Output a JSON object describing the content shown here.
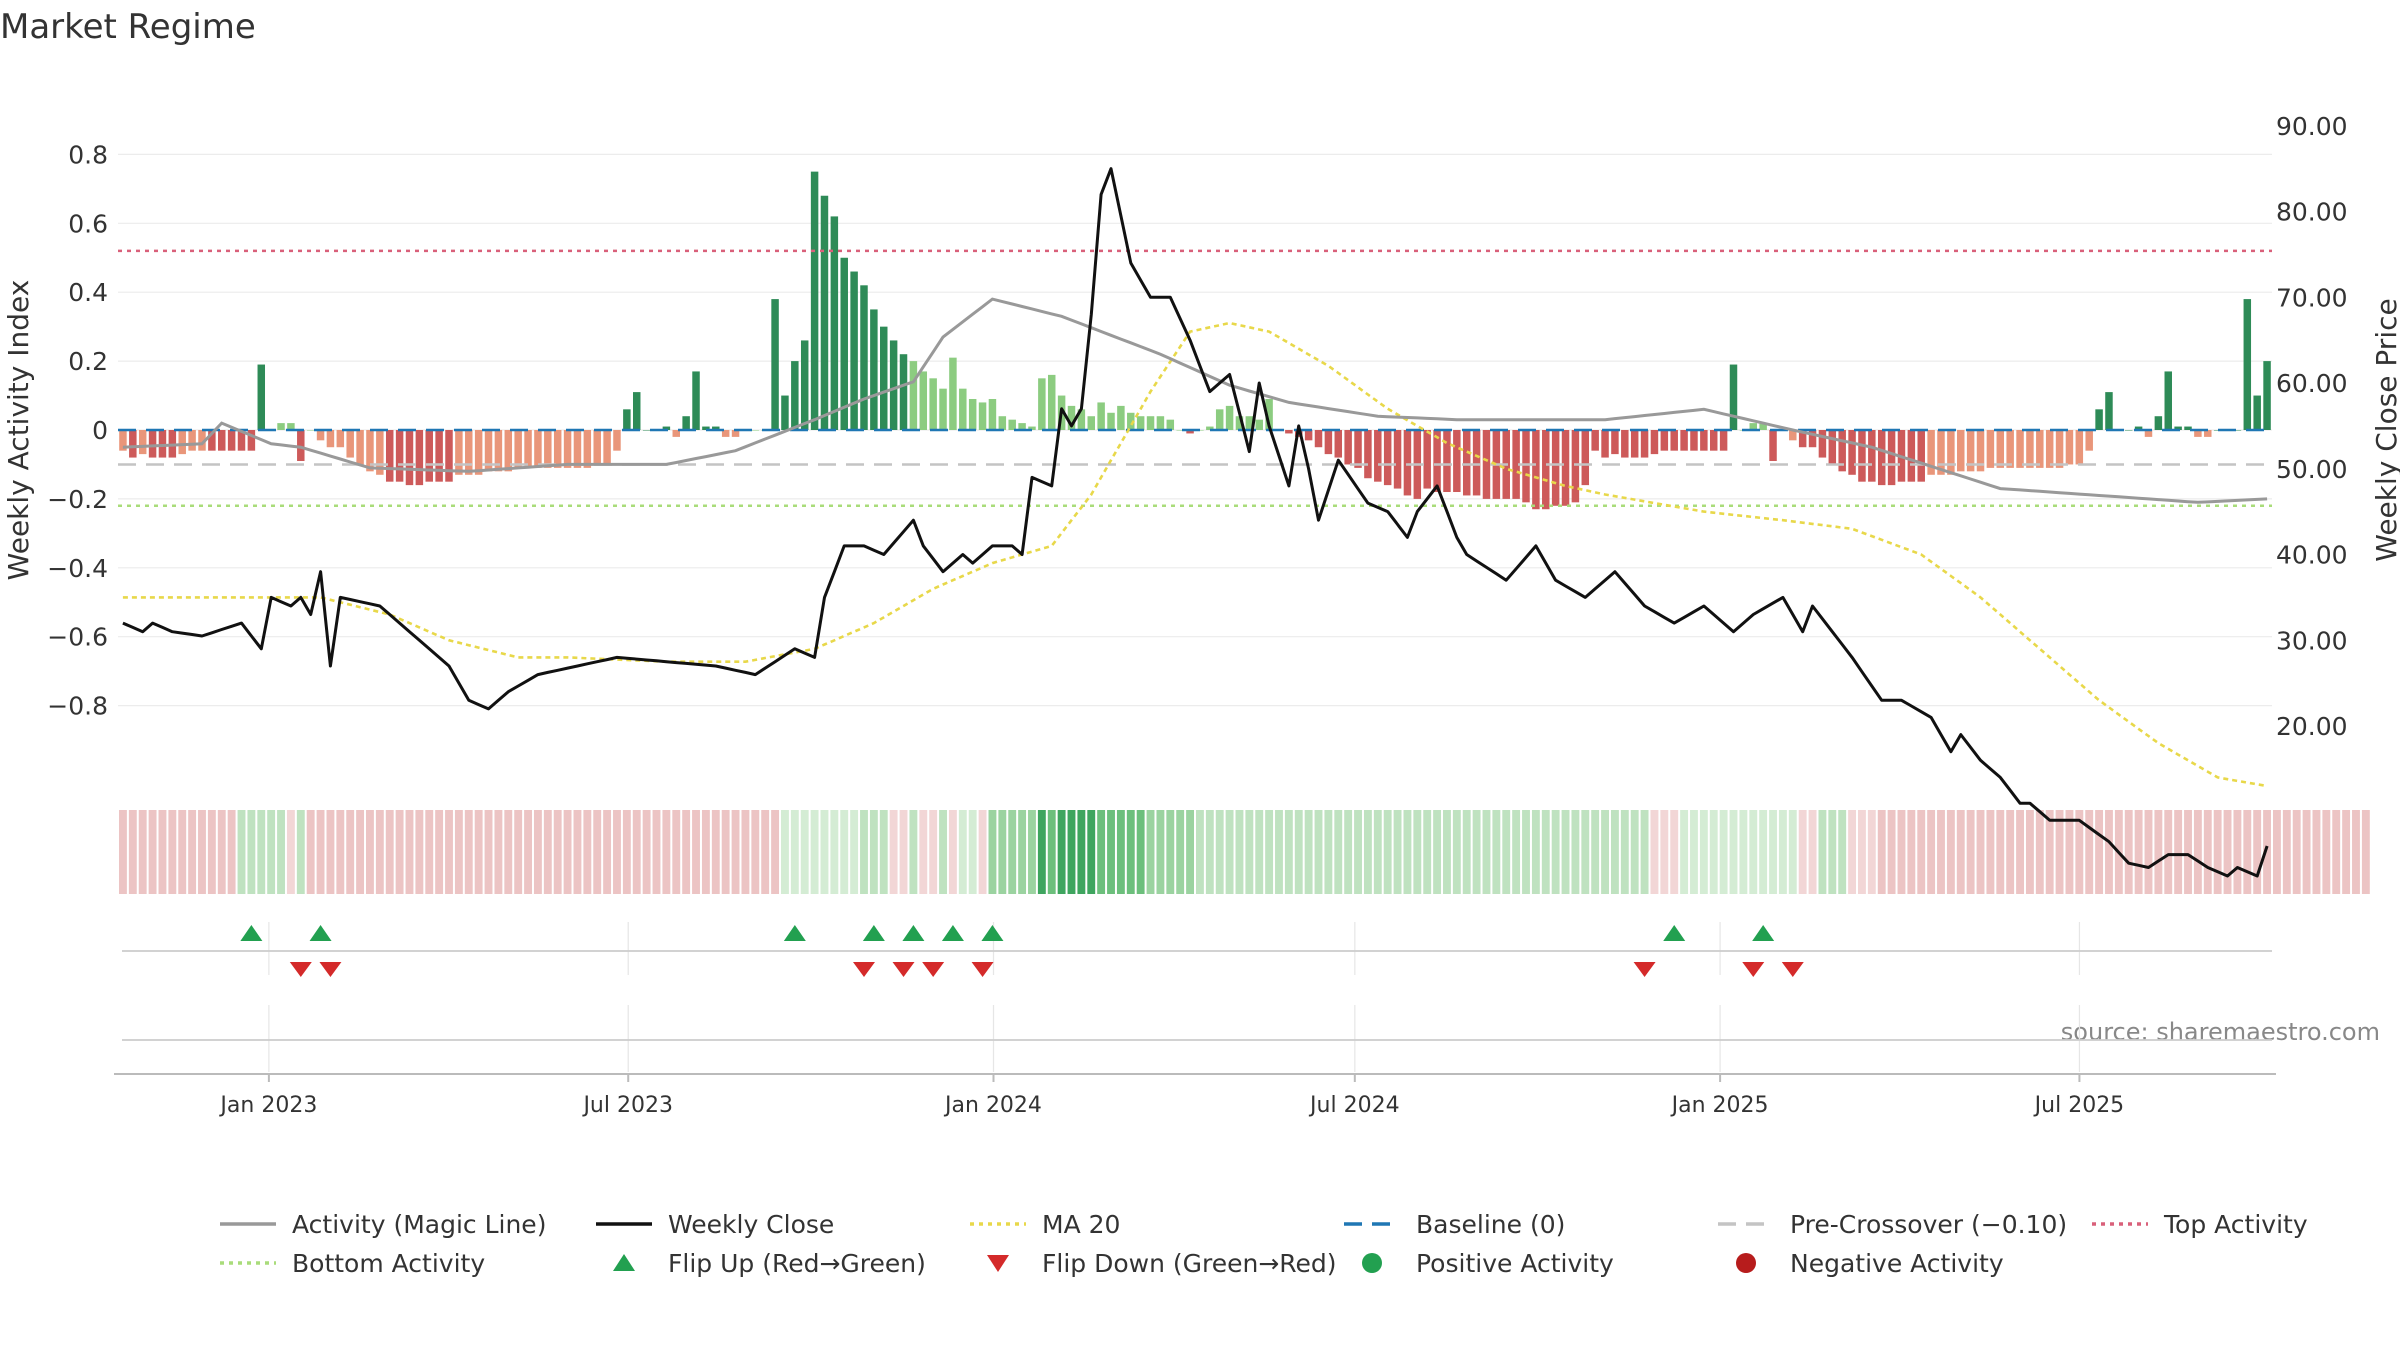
{
  "chart_data": {
    "type": "bar",
    "title": "Market Regime",
    "ylabel": "Weekly Activity Index",
    "ylabel_right": "Weekly Close Price",
    "source": "source: sharemaestro.com",
    "ylim": [
      -0.85,
      0.8
    ],
    "y2lim": [
      10,
      97.5
    ],
    "y_ticks": [
      "0.8",
      "0.6",
      "0.4",
      "0.2",
      "0",
      "−0.2",
      "−0.4",
      "−0.6",
      "−0.8"
    ],
    "y_tick_values": [
      0.8,
      0.6,
      0.4,
      0.2,
      0,
      -0.2,
      -0.4,
      -0.6,
      -0.8
    ],
    "y2_ticks": [
      "90.00",
      "80.00",
      "70.00",
      "60.00",
      "50.00",
      "40.00",
      "30.00",
      "20.00"
    ],
    "y2_tick_values": [
      90,
      80,
      70,
      60,
      50,
      40,
      30,
      20
    ],
    "x_start": "2022-10-17",
    "x_end": "2025-10-06",
    "x_ticks": [
      {
        "label": "Jan 2023",
        "date": "2023-01-01"
      },
      {
        "label": "Jul 2023",
        "date": "2023-07-01"
      },
      {
        "label": "Jan 2024",
        "date": "2024-01-01"
      },
      {
        "label": "Jul 2024",
        "date": "2024-07-01"
      },
      {
        "label": "Jan 2025",
        "date": "2025-01-01"
      },
      {
        "label": "Jul 2025",
        "date": "2025-07-01"
      }
    ],
    "reference_lines": {
      "top_activity": 0.52,
      "baseline": 0,
      "pre_crossover": -0.1,
      "bottom_activity": -0.22
    },
    "activity_segments": [
      [
        0,
        -0.05
      ],
      [
        8,
        -0.04
      ],
      [
        10,
        0.02
      ],
      [
        15,
        -0.04
      ],
      [
        18,
        -0.05
      ],
      [
        25,
        -0.11
      ],
      [
        35,
        -0.12
      ],
      [
        45,
        -0.1
      ],
      [
        55,
        -0.1
      ],
      [
        62,
        -0.06
      ],
      [
        70,
        0.03
      ],
      [
        75,
        0.09
      ],
      [
        80,
        0.14
      ],
      [
        83,
        0.27
      ],
      [
        88,
        0.38
      ],
      [
        95,
        0.33
      ],
      [
        105,
        0.22
      ],
      [
        112,
        0.13
      ],
      [
        118,
        0.08
      ],
      [
        127,
        0.04
      ],
      [
        135,
        0.03
      ],
      [
        150,
        0.03
      ],
      [
        160,
        0.06
      ],
      [
        169,
        0.0
      ],
      [
        177,
        -0.05
      ],
      [
        190,
        -0.17
      ],
      [
        210,
        -0.21
      ],
      [
        217,
        -0.2
      ]
    ],
    "close_segments": [
      [
        0,
        32
      ],
      [
        2,
        31
      ],
      [
        3,
        32
      ],
      [
        5,
        31
      ],
      [
        8,
        30.5
      ],
      [
        12,
        32
      ],
      [
        14,
        29
      ],
      [
        15,
        35
      ],
      [
        17,
        34
      ],
      [
        18,
        35
      ],
      [
        19,
        33
      ],
      [
        20,
        38
      ],
      [
        21,
        27
      ],
      [
        22,
        35
      ],
      [
        26,
        34
      ],
      [
        30,
        30
      ],
      [
        33,
        27
      ],
      [
        35,
        23
      ],
      [
        37,
        22
      ],
      [
        39,
        24
      ],
      [
        42,
        26
      ],
      [
        50,
        28
      ],
      [
        60,
        27
      ],
      [
        64,
        26
      ],
      [
        68,
        29
      ],
      [
        70,
        28
      ],
      [
        71,
        35
      ],
      [
        73,
        41
      ],
      [
        75,
        41
      ],
      [
        77,
        40
      ],
      [
        80,
        44
      ],
      [
        81,
        41
      ],
      [
        83,
        38
      ],
      [
        85,
        40
      ],
      [
        86,
        39
      ],
      [
        88,
        41
      ],
      [
        90,
        41
      ],
      [
        91,
        40
      ],
      [
        92,
        49
      ],
      [
        94,
        48
      ],
      [
        95,
        57
      ],
      [
        96,
        55
      ],
      [
        97,
        57
      ],
      [
        98,
        68
      ],
      [
        99,
        82
      ],
      [
        100,
        85
      ],
      [
        102,
        74
      ],
      [
        104,
        70
      ],
      [
        106,
        70
      ],
      [
        108,
        65
      ],
      [
        110,
        59
      ],
      [
        112,
        61
      ],
      [
        114,
        52
      ],
      [
        115,
        60
      ],
      [
        116,
        55
      ],
      [
        118,
        48
      ],
      [
        119,
        55
      ],
      [
        120,
        50
      ],
      [
        121,
        44
      ],
      [
        123,
        51
      ],
      [
        126,
        46
      ],
      [
        128,
        45
      ],
      [
        130,
        42
      ],
      [
        131,
        45
      ],
      [
        133,
        48
      ],
      [
        135,
        42
      ],
      [
        136,
        40
      ],
      [
        140,
        37
      ],
      [
        143,
        41
      ],
      [
        145,
        37
      ],
      [
        148,
        35
      ],
      [
        151,
        38
      ],
      [
        154,
        34
      ],
      [
        157,
        32
      ],
      [
        160,
        34
      ],
      [
        163,
        31
      ],
      [
        165,
        33
      ],
      [
        168,
        35
      ],
      [
        170,
        31
      ],
      [
        171,
        34
      ],
      [
        173,
        31
      ],
      [
        175,
        28
      ],
      [
        178,
        23
      ],
      [
        180,
        23
      ],
      [
        183,
        21
      ],
      [
        185,
        17
      ],
      [
        186,
        19
      ],
      [
        188,
        16
      ],
      [
        190,
        14
      ],
      [
        192,
        11
      ],
      [
        193,
        11
      ],
      [
        195,
        9
      ],
      [
        198,
        9
      ],
      [
        201,
        6.5
      ],
      [
        203,
        4
      ],
      [
        205,
        3.5
      ],
      [
        207,
        5
      ],
      [
        209,
        5
      ],
      [
        211,
        3.5
      ],
      [
        213,
        2.5
      ],
      [
        214,
        3.5
      ],
      [
        216,
        2.5
      ],
      [
        217,
        6
      ]
    ],
    "ma_segments": [
      [
        0,
        35
      ],
      [
        20,
        35
      ],
      [
        27,
        33
      ],
      [
        33,
        30
      ],
      [
        40,
        28
      ],
      [
        45,
        28
      ],
      [
        55,
        27.5
      ],
      [
        63,
        27.5
      ],
      [
        70,
        29
      ],
      [
        76,
        32
      ],
      [
        82,
        36
      ],
      [
        88,
        39
      ],
      [
        94,
        41
      ],
      [
        98,
        47
      ],
      [
        101,
        53
      ],
      [
        104,
        59
      ],
      [
        108,
        66
      ],
      [
        112,
        67
      ],
      [
        116,
        66
      ],
      [
        122,
        62
      ],
      [
        128,
        57
      ],
      [
        134,
        53
      ],
      [
        140,
        50
      ],
      [
        146,
        48
      ],
      [
        150,
        47
      ],
      [
        160,
        45
      ],
      [
        168,
        44
      ],
      [
        175,
        43
      ],
      [
        182,
        40
      ],
      [
        188,
        35
      ],
      [
        194,
        29
      ],
      [
        200,
        23
      ],
      [
        206,
        18
      ],
      [
        212,
        14
      ],
      [
        217,
        13
      ]
    ],
    "bar_series": [
      {
        "name": "A",
        "values": [
          -0.06,
          -0.08,
          -0.07,
          -0.08,
          -0.08,
          -0.08,
          -0.07,
          -0.06,
          -0.06,
          -0.06,
          -0.06,
          -0.06,
          -0.06,
          -0.06,
          0.19,
          0.0,
          0.02,
          0.02,
          -0.09,
          0.0,
          -0.03,
          -0.05,
          -0.05,
          -0.08,
          -0.1,
          -0.12,
          -0.13,
          -0.15,
          -0.15,
          -0.16,
          -0.16,
          -0.15,
          -0.15,
          -0.15,
          -0.13,
          -0.13,
          -0.13,
          -0.12,
          -0.12,
          -0.12,
          -0.11,
          -0.11,
          -0.11,
          -0.11,
          -0.11,
          -0.11,
          -0.11,
          -0.11,
          -0.1,
          -0.1,
          -0.06,
          0.06,
          0.11,
          0.0,
          0.0,
          0.01,
          -0.02,
          0.04,
          0.17,
          0.01,
          0.01,
          -0.02,
          -0.02,
          0.0,
          0.0,
          0.0,
          0.38,
          0.1,
          0.2,
          0.26,
          0.75,
          0.68,
          0.62,
          0.5,
          0.46,
          0.42,
          0.35,
          0.3,
          0.26,
          0.22,
          0.2,
          0.17,
          0.15,
          0.12,
          0.21,
          0.12,
          0.09,
          0.08,
          0.09,
          0.04,
          0.03,
          0.02,
          0.01,
          0.15,
          0.16,
          0.1,
          0.07,
          0.06,
          0.04,
          0.08,
          0.05,
          0.07,
          0.05,
          0.04,
          0.04,
          0.04,
          0.03,
          0.0,
          -0.01,
          0.0,
          0.01,
          0.06,
          0.07,
          0.04,
          0.04,
          0.03,
          0.09,
          0.0,
          -0.01,
          -0.02,
          -0.03,
          -0.05,
          -0.07,
          -0.08,
          -0.1,
          -0.11,
          -0.14,
          -0.15,
          -0.16,
          -0.17,
          -0.19,
          -0.2,
          -0.17,
          -0.18,
          -0.18,
          -0.18,
          -0.19,
          -0.19,
          -0.2,
          -0.2,
          -0.2,
          -0.2,
          -0.21,
          -0.23,
          -0.23,
          -0.22,
          -0.22,
          -0.21,
          -0.16
        ]
      },
      {
        "name": "B",
        "values": [
          -0.06,
          -0.08,
          -0.07,
          -0.08,
          -0.08,
          -0.08,
          -0.07,
          -0.06,
          -0.06,
          -0.06,
          -0.06,
          -0.06,
          -0.06,
          -0.06,
          0.19,
          0.0,
          0.02,
          0.02,
          -0.09,
          0.0,
          -0.03,
          -0.05,
          -0.05,
          -0.08,
          -0.1,
          -0.12,
          -0.13,
          -0.15,
          -0.15,
          -0.16,
          -0.16,
          -0.15,
          -0.15,
          -0.15,
          -0.13,
          -0.13
        ]
      }
    ],
    "regime_strip": [
      "r2",
      "r2",
      "r2",
      "r2",
      "r2",
      "r2",
      "r2",
      "r2",
      "r2",
      "r2",
      "r2",
      "r2",
      "g1",
      "g1",
      "g1",
      "g1",
      "g1",
      "r1",
      "g1",
      "r2",
      "r2",
      "r2",
      "r2",
      "r2",
      "r2",
      "r2",
      "r2",
      "r2",
      "r2",
      "r2",
      "r2",
      "r2",
      "r2",
      "r2",
      "r2",
      "r2",
      "r2",
      "r2",
      "r2",
      "r2",
      "r2",
      "r2",
      "r2",
      "r2",
      "r2",
      "r2",
      "r2",
      "r2",
      "r2",
      "r2",
      "r2",
      "r2",
      "r2",
      "r2",
      "r2",
      "r2",
      "r2",
      "r2",
      "r2",
      "r2",
      "r2",
      "r2",
      "r2",
      "r2",
      "r2",
      "r2",
      "r2",
      "g0",
      "g0",
      "g0",
      "g0",
      "g0",
      "g0",
      "g0",
      "g0",
      "g1",
      "g1",
      "g1",
      "r1",
      "r1",
      "g1",
      "r1",
      "r1",
      "g1",
      "r1",
      "g0",
      "g0",
      "r1",
      "g2",
      "g2",
      "g2",
      "g2",
      "g2",
      "g4",
      "g3",
      "g4",
      "g4",
      "g4",
      "g4",
      "g3",
      "g3",
      "g3",
      "g3",
      "g3",
      "g2",
      "g2",
      "g2",
      "g2",
      "g2",
      "g1",
      "g1",
      "g1",
      "g1",
      "g1",
      "g1",
      "g1",
      "g1",
      "g1",
      "g1",
      "g1",
      "g1",
      "g1",
      "g1",
      "g1",
      "g1",
      "g1",
      "g1",
      "g1",
      "g1",
      "g1",
      "g1",
      "g1",
      "g1",
      "g1",
      "g1",
      "g1",
      "g1",
      "g1",
      "g1",
      "g1",
      "g1",
      "g1",
      "g1",
      "g1",
      "g1",
      "g1",
      "g1",
      "g1",
      "g1",
      "g1",
      "g1",
      "g1",
      "g1",
      "g1",
      "g1",
      "r1",
      "r1",
      "r1",
      "g0",
      "g0",
      "g0",
      "g0",
      "g0",
      "g0",
      "g0",
      "g0",
      "g0",
      "g0",
      "g0",
      "g0",
      "r1",
      "r1",
      "g1",
      "g1",
      "g1",
      "r1",
      "r1",
      "r1",
      "r2",
      "r2",
      "r2",
      "r2",
      "r2",
      "r2",
      "r2",
      "r2",
      "r2",
      "r2",
      "r2",
      "r2",
      "r2",
      "r2",
      "r2",
      "r2",
      "r2",
      "r2",
      "r2",
      "r2",
      "r2",
      "r2",
      "r2",
      "r2",
      "r2",
      "r2",
      "r2",
      "r2",
      "r2",
      "r2",
      "r2",
      "r2",
      "r2",
      "r2",
      "r2",
      "r2",
      "r2",
      "r2",
      "r2",
      "r2",
      "r2",
      "r2",
      "r2",
      "r2",
      "r2",
      "r2",
      "r2",
      "r2",
      "r2",
      "r2"
    ],
    "flip_up": [
      13,
      20,
      68,
      76,
      80,
      84,
      88,
      157,
      166
    ],
    "flip_down": [
      18,
      21,
      75,
      79,
      82,
      87,
      154,
      165,
      169
    ],
    "colors": {
      "pos_strong": "#2e8b57",
      "pos_light": "#8ccc80",
      "neg_strong": "#cd5a5a",
      "neg_light": "#e9967a",
      "magic_line": "#999999",
      "close_line": "#111111",
      "ma_line": "#e8d84a",
      "baseline": "#1f77b4",
      "pre_crossover": "#c4c4c4",
      "top_activity": "#d9607a",
      "bottom_activity": "#a9dc7a",
      "flip_up": "#22a050",
      "flip_down": "#d42a2a",
      "positive": "#22a050",
      "negative": "#b71c1c"
    },
    "legend": [
      {
        "label": "Activity (Magic Line)",
        "icon": "solid-line-icon",
        "color": "#999999"
      },
      {
        "label": "Weekly Close",
        "icon": "solid-line-icon",
        "color": "#111111"
      },
      {
        "label": "MA 20",
        "icon": "dotted-line-icon",
        "color": "#e8d84a"
      },
      {
        "label": "Baseline (0)",
        "icon": "dashed-line-icon",
        "color": "#1f77b4"
      },
      {
        "label": "Pre-Crossover (−0.10)",
        "icon": "dashed-line-icon",
        "color": "#c4c4c4"
      },
      {
        "label": "Top Activity",
        "icon": "dotted-line-icon",
        "color": "#d9607a"
      },
      {
        "label": "Bottom Activity",
        "icon": "dotted-line-icon",
        "color": "#a9dc7a"
      },
      {
        "label": "Flip Up (Red→Green)",
        "icon": "triangle-up-icon",
        "color": "#22a050"
      },
      {
        "label": "Flip Down (Green→Red)",
        "icon": "triangle-down-icon",
        "color": "#d42a2a"
      },
      {
        "label": "Positive Activity",
        "icon": "circle-icon",
        "color": "#22a050"
      },
      {
        "label": "Negative Activity",
        "icon": "circle-icon",
        "color": "#b71c1c"
      }
    ]
  }
}
